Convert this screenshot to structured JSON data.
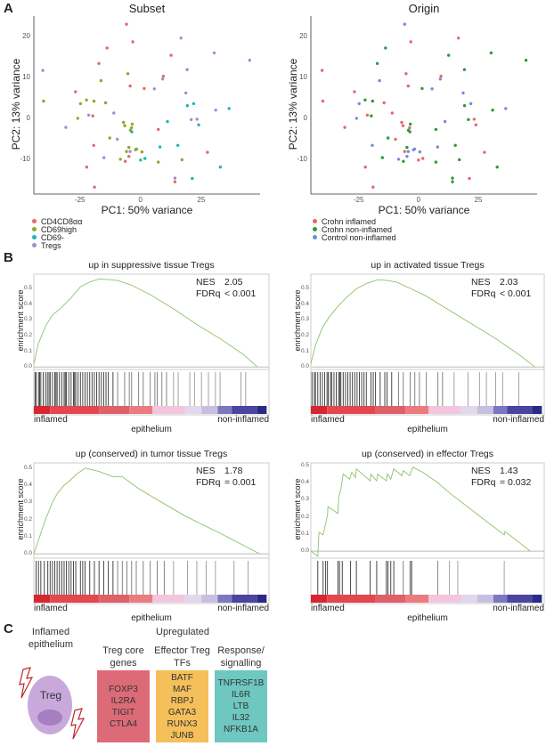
{
  "panels": {
    "a": "A",
    "b": "B",
    "c": "C"
  },
  "colors": {
    "subset": [
      "#e8676a",
      "#8aab2a",
      "#1cb5b8",
      "#a68ad0"
    ],
    "origin": [
      "#e8676a",
      "#2e9a3a",
      "#6f8fd6"
    ],
    "es_line": "#8dc26a",
    "colorbar": [
      [
        "#d7262f",
        0.07
      ],
      [
        "#e2484e",
        0.28
      ],
      [
        "#e0606a",
        0.41
      ],
      [
        "#ea7c80",
        0.51
      ],
      [
        "#f4c6de",
        0.65
      ],
      [
        "#e0d8ec",
        0.72
      ],
      [
        "#c8bfe0",
        0.79
      ],
      [
        "#7c78c0",
        0.85
      ],
      [
        "#4b44a0",
        0.96
      ],
      [
        "#2a2a86",
        1.0
      ]
    ],
    "box_red": "#dc6b77",
    "box_orange": "#f5bf5a",
    "box_teal": "#6ec7c0",
    "cell": "#c9a9db",
    "nucleus": "#a77fc0",
    "bolt": "#c0262d"
  },
  "chart_data": [
    {
      "type": "scatter",
      "title": "Subset",
      "xlabel": "PC1: 50% variance",
      "ylabel": "PC2: 13% variance",
      "xticks": [
        -25,
        0,
        25
      ],
      "yticks": [
        -10,
        0,
        10,
        20
      ],
      "xlim": [
        -44,
        49.3
      ],
      "ylim": [
        -18.5,
        25
      ],
      "grid": false,
      "legend": "bottom-left",
      "legend_entries": [
        "CD4CD8αα",
        "CD69high",
        "CD69-",
        "Tregs"
      ],
      "color_by": "subset"
    },
    {
      "type": "scatter",
      "title": "Origin",
      "xlabel": "PC1: 50% variance",
      "ylabel": "PC2: 13% variance",
      "xticks": [
        -25,
        0,
        25
      ],
      "yticks": [
        -10,
        0,
        10,
        20
      ],
      "xlim": [
        -45,
        49.6
      ],
      "ylim": [
        -18.5,
        25
      ],
      "grid": false,
      "legend": "bottom-left",
      "legend_entries": [
        "Crohn inflamed",
        "Crohn non-inflamed",
        "Control non-inflamed"
      ],
      "color_by": "origin"
    },
    {
      "type": "line",
      "title": "up in suppressive tissue Tregs",
      "ylabel": "enrichment score",
      "xlabel": "epithelium",
      "xlabel_left": "inflamed",
      "xlabel_right": "non-inflamed",
      "nes_label": "NES",
      "nes": "2.05",
      "fdr_label": "FDRq",
      "fdr": "< 0.001",
      "yticks": [
        "0.0",
        "0.1",
        "0.2",
        "0.3",
        "0.4",
        "0.5"
      ],
      "ylim": [
        -0.01,
        0.59
      ],
      "curve": [
        [
          0,
          0.02
        ],
        [
          0.02,
          0.15
        ],
        [
          0.05,
          0.26
        ],
        [
          0.08,
          0.33
        ],
        [
          0.12,
          0.38
        ],
        [
          0.16,
          0.44
        ],
        [
          0.2,
          0.51
        ],
        [
          0.24,
          0.54
        ],
        [
          0.28,
          0.56
        ],
        [
          0.33,
          0.555
        ],
        [
          0.36,
          0.55
        ],
        [
          0.42,
          0.52
        ],
        [
          0.5,
          0.46
        ],
        [
          0.6,
          0.37
        ],
        [
          0.7,
          0.27
        ],
        [
          0.8,
          0.18
        ],
        [
          0.9,
          0.08
        ],
        [
          0.96,
          0.0
        ]
      ],
      "hits": [
        0.005,
        0.01,
        0.02,
        0.025,
        0.03,
        0.04,
        0.05,
        0.058,
        0.065,
        0.07,
        0.08,
        0.09,
        0.095,
        0.1,
        0.11,
        0.12,
        0.13,
        0.135,
        0.14,
        0.15,
        0.16,
        0.17,
        0.175,
        0.18,
        0.19,
        0.2,
        0.21,
        0.22,
        0.23,
        0.24,
        0.25,
        0.26,
        0.27,
        0.28,
        0.29,
        0.3,
        0.31,
        0.32,
        0.34,
        0.36,
        0.39,
        0.41,
        0.42,
        0.45,
        0.47,
        0.5,
        0.52,
        0.53,
        0.55,
        0.57,
        0.6,
        0.62,
        0.67,
        0.69,
        0.72,
        0.75,
        0.78,
        0.8,
        0.89,
        0.91
      ]
    },
    {
      "type": "line",
      "title": "up in activated tissue Tregs",
      "ylabel": "enrichment score",
      "xlabel": "epithelium",
      "xlabel_left": "inflamed",
      "xlabel_right": "non-inflamed",
      "nes_label": "NES",
      "nes": "2.03",
      "fdr_label": "FDRq",
      "fdr": "< 0.001",
      "yticks": [
        "0.0",
        "0.1",
        "0.2",
        "0.3",
        "0.4",
        "0.5"
      ],
      "ylim": [
        -0.01,
        0.59
      ],
      "curve": [
        [
          0,
          0.02
        ],
        [
          0.02,
          0.14
        ],
        [
          0.05,
          0.25
        ],
        [
          0.08,
          0.32
        ],
        [
          0.12,
          0.39
        ],
        [
          0.16,
          0.45
        ],
        [
          0.2,
          0.5
        ],
        [
          0.24,
          0.53
        ],
        [
          0.29,
          0.555
        ],
        [
          0.33,
          0.55
        ],
        [
          0.37,
          0.54
        ],
        [
          0.43,
          0.5
        ],
        [
          0.5,
          0.45
        ],
        [
          0.6,
          0.36
        ],
        [
          0.7,
          0.27
        ],
        [
          0.8,
          0.18
        ],
        [
          0.9,
          0.08
        ],
        [
          0.97,
          0.0
        ]
      ],
      "hits": [
        0.005,
        0.015,
        0.02,
        0.03,
        0.04,
        0.05,
        0.06,
        0.07,
        0.075,
        0.085,
        0.09,
        0.1,
        0.11,
        0.12,
        0.125,
        0.13,
        0.14,
        0.15,
        0.16,
        0.17,
        0.18,
        0.19,
        0.2,
        0.21,
        0.22,
        0.23,
        0.24,
        0.26,
        0.27,
        0.28,
        0.3,
        0.32,
        0.33,
        0.35,
        0.38,
        0.4,
        0.43,
        0.45,
        0.47,
        0.5,
        0.55,
        0.57,
        0.62,
        0.68,
        0.73,
        0.76,
        0.8,
        0.83,
        0.9
      ]
    },
    {
      "type": "line",
      "title": "up (conserved) in tumor tissue Tregs",
      "ylabel": "enrichment score",
      "xlabel": "epithelium",
      "xlabel_left": "inflamed",
      "xlabel_right": "non-inflamed",
      "nes_label": "NES",
      "nes": "1.78",
      "fdr_label": "FDRq",
      "fdr": "= 0.001",
      "yticks": [
        "0.0",
        "0.1",
        "0.2",
        "0.3",
        "0.4",
        "0.5"
      ],
      "ylim": [
        -0.02,
        0.53
      ],
      "curve": [
        [
          0,
          0
        ],
        [
          0.03,
          0.12
        ],
        [
          0.05,
          0.2
        ],
        [
          0.08,
          0.3
        ],
        [
          0.1,
          0.35
        ],
        [
          0.13,
          0.4
        ],
        [
          0.15,
          0.42
        ],
        [
          0.18,
          0.46
        ],
        [
          0.22,
          0.5
        ],
        [
          0.25,
          0.49
        ],
        [
          0.28,
          0.48
        ],
        [
          0.3,
          0.47
        ],
        [
          0.34,
          0.45
        ],
        [
          0.38,
          0.45
        ],
        [
          0.42,
          0.41
        ],
        [
          0.45,
          0.38
        ],
        [
          0.55,
          0.3
        ],
        [
          0.65,
          0.22
        ],
        [
          0.8,
          0.12
        ],
        [
          0.9,
          0.05
        ],
        [
          0.97,
          0.0
        ]
      ],
      "hits": [
        0.01,
        0.02,
        0.03,
        0.045,
        0.06,
        0.07,
        0.08,
        0.09,
        0.1,
        0.11,
        0.12,
        0.13,
        0.14,
        0.15,
        0.16,
        0.17,
        0.18,
        0.2,
        0.21,
        0.22,
        0.24,
        0.26,
        0.28,
        0.3,
        0.32,
        0.34,
        0.36,
        0.38,
        0.4,
        0.42,
        0.44,
        0.47,
        0.5,
        0.53,
        0.56,
        0.6,
        0.66,
        0.7,
        0.74,
        0.78,
        0.86,
        0.92
      ]
    },
    {
      "type": "line",
      "title": "up (conserved) in effector Tregs",
      "ylabel": "enrichment score",
      "xlabel": "epithelium",
      "xlabel_left": "inflamed",
      "xlabel_right": "non-inflamed",
      "nes_label": "NES",
      "nes": "1.43",
      "fdr_label": "FDRq",
      "fdr": "= 0.032",
      "yticks": [
        "0.0",
        "0.1",
        "0.2",
        "0.3",
        "0.4",
        "0.5"
      ],
      "ylim": [
        -0.036,
        0.515
      ],
      "curve": [
        [
          0,
          0
        ],
        [
          0.03,
          -0.03
        ],
        [
          0.035,
          0.11
        ],
        [
          0.053,
          0.095
        ],
        [
          0.064,
          0.16
        ],
        [
          0.072,
          0.21
        ],
        [
          0.074,
          0.26
        ],
        [
          0.117,
          0.22
        ],
        [
          0.121,
          0.32
        ],
        [
          0.13,
          0.36
        ],
        [
          0.14,
          0.45
        ],
        [
          0.168,
          0.42
        ],
        [
          0.177,
          0.46
        ],
        [
          0.193,
          0.43
        ],
        [
          0.197,
          0.48
        ],
        [
          0.257,
          0.41
        ],
        [
          0.26,
          0.45
        ],
        [
          0.285,
          0.41
        ],
        [
          0.289,
          0.45
        ],
        [
          0.327,
          0.41
        ],
        [
          0.331,
          0.45
        ],
        [
          0.346,
          0.42
        ],
        [
          0.359,
          0.48
        ],
        [
          0.394,
          0.44
        ],
        [
          0.4,
          0.47
        ],
        [
          0.428,
          0.44
        ],
        [
          0.441,
          0.49
        ],
        [
          0.485,
          0.46
        ],
        [
          0.549,
          0.4
        ],
        [
          0.6,
          0.34
        ],
        [
          0.837,
          0.095
        ],
        [
          0.84,
          0.115
        ],
        [
          0.95,
          0.0
        ]
      ],
      "hits": [
        0.03,
        0.053,
        0.064,
        0.072,
        0.117,
        0.124,
        0.136,
        0.172,
        0.197,
        0.257,
        0.285,
        0.327,
        0.334,
        0.346,
        0.359,
        0.4,
        0.429,
        0.433,
        0.437,
        0.549,
        0.6,
        0.636,
        0.837
      ]
    }
  ],
  "points": [
    [
      -5.8,
      23,
      0,
      2
    ],
    [
      -3.2,
      18.7,
      0,
      0
    ],
    [
      -13.8,
      17.2,
      0,
      1
    ],
    [
      -17.2,
      13.4,
      0,
      1
    ],
    [
      12.6,
      15.4,
      0,
      1
    ],
    [
      9.4,
      10.3,
      0,
      0
    ],
    [
      -4.3,
      7.9,
      0,
      0
    ],
    [
      1.5,
      7.3,
      0,
      1
    ],
    [
      -26.8,
      6.5,
      0,
      0
    ],
    [
      -19.7,
      0.6,
      0,
      1
    ],
    [
      7.3,
      -2.7,
      0,
      1
    ],
    [
      -19.3,
      -6.6,
      0,
      2
    ],
    [
      -4.8,
      -9.3,
      0,
      2
    ],
    [
      -6.3,
      -10.5,
      0,
      1
    ],
    [
      -22.2,
      -11.9,
      0,
      0
    ],
    [
      -19,
      -16.8,
      0,
      0
    ],
    [
      14.2,
      -15.5,
      0,
      1
    ],
    [
      27.6,
      -8.3,
      0,
      0
    ],
    [
      -40,
      4.2,
      1,
      0
    ],
    [
      -5.2,
      10.9,
      1,
      0
    ],
    [
      -16.3,
      9.2,
      1,
      2
    ],
    [
      -22.3,
      4.5,
      1,
      1
    ],
    [
      -24.8,
      3.6,
      1,
      2
    ],
    [
      -19.2,
      4.2,
      1,
      1
    ],
    [
      -14.4,
      3.8,
      1,
      0
    ],
    [
      -25.9,
      0,
      1,
      2
    ],
    [
      -7,
      -1,
      1,
      0
    ],
    [
      -6.5,
      -1.8,
      1,
      0
    ],
    [
      -3.4,
      -1.4,
      1,
      1
    ],
    [
      -3.7,
      -2.3,
      1,
      0
    ],
    [
      -4.2,
      -2.9,
      1,
      1
    ],
    [
      -12.7,
      -4.8,
      1,
      1
    ],
    [
      -4.8,
      -7.1,
      1,
      1
    ],
    [
      -5.8,
      -8.1,
      1,
      0
    ],
    [
      -1.6,
      -7.5,
      1,
      2
    ],
    [
      -2.1,
      -7.7,
      1,
      2
    ],
    [
      0.6,
      -8.2,
      1,
      2
    ],
    [
      -8.3,
      -10,
      1,
      2
    ],
    [
      7.3,
      -10.7,
      1,
      1
    ],
    [
      17.1,
      -10.1,
      1,
      1
    ],
    [
      -3.6,
      -3.3,
      2,
      1
    ],
    [
      11.1,
      -0.8,
      2,
      2
    ],
    [
      8,
      -7,
      2,
      2
    ],
    [
      15.4,
      -6.6,
      2,
      1
    ],
    [
      1.8,
      -9.8,
      2,
      0
    ],
    [
      0,
      -10.2,
      2,
      0
    ],
    [
      19.3,
      3.1,
      2,
      1
    ],
    [
      21.9,
      3.6,
      2,
      2
    ],
    [
      24,
      -1.6,
      2,
      0
    ],
    [
      36.5,
      2.4,
      2,
      2
    ],
    [
      32.9,
      -11.9,
      2,
      1
    ],
    [
      21.3,
      -14.7,
      2,
      0
    ],
    [
      -40.3,
      11.7,
      3,
      0
    ],
    [
      -30.8,
      -2.2,
      3,
      0
    ],
    [
      -21.4,
      0.8,
      3,
      0
    ],
    [
      -11,
      1.3,
      3,
      0
    ],
    [
      -9.6,
      -5.1,
      3,
      0
    ],
    [
      -15.1,
      -9.6,
      3,
      1
    ],
    [
      -4.3,
      -8.1,
      3,
      2
    ],
    [
      5.7,
      7.2,
      3,
      2
    ],
    [
      9.1,
      9.6,
      3,
      2
    ],
    [
      16.7,
      19.6,
      3,
      0
    ],
    [
      19.2,
      11.9,
      3,
      1
    ],
    [
      18.7,
      6.2,
      3,
      2
    ],
    [
      20.9,
      -0.3,
      3,
      1
    ],
    [
      23.3,
      -0.2,
      3,
      0
    ],
    [
      31,
      2,
      3,
      1
    ],
    [
      30.4,
      16,
      3,
      1
    ],
    [
      45,
      14.2,
      3,
      1
    ],
    [
      14.2,
      -14.6,
      3,
      1
    ]
  ],
  "panel_c": {
    "cell_header": [
      "Inflamed",
      "epithelium"
    ],
    "cell_label": "Treg",
    "upregulated": "Upregulated",
    "groups": [
      {
        "header": [
          "Treg core",
          "genes"
        ],
        "genes": [
          "FOXP3",
          "IL2RA",
          "TIGIT",
          "CTLA4"
        ]
      },
      {
        "header": [
          "Effector Treg",
          "TFs"
        ],
        "genes": [
          "BATF",
          "MAF",
          "RBPJ",
          "GATA3",
          "RUNX3",
          "JUNB"
        ]
      },
      {
        "header": [
          "Response/",
          "signalling"
        ],
        "genes": [
          "TNFRSF1B",
          "IL6R",
          "LTB",
          "IL32",
          "NFKB1A"
        ]
      }
    ]
  }
}
